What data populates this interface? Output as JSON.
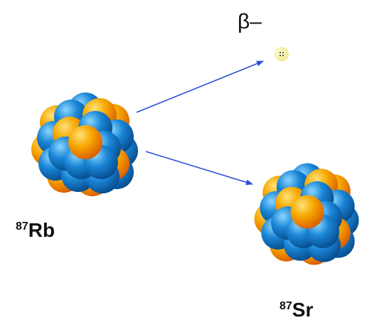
{
  "particle": {
    "label": "β–"
  },
  "parent": {
    "mass": "87",
    "symbol": "Rb"
  },
  "daughter": {
    "mass": "87",
    "symbol": "Sr"
  }
}
